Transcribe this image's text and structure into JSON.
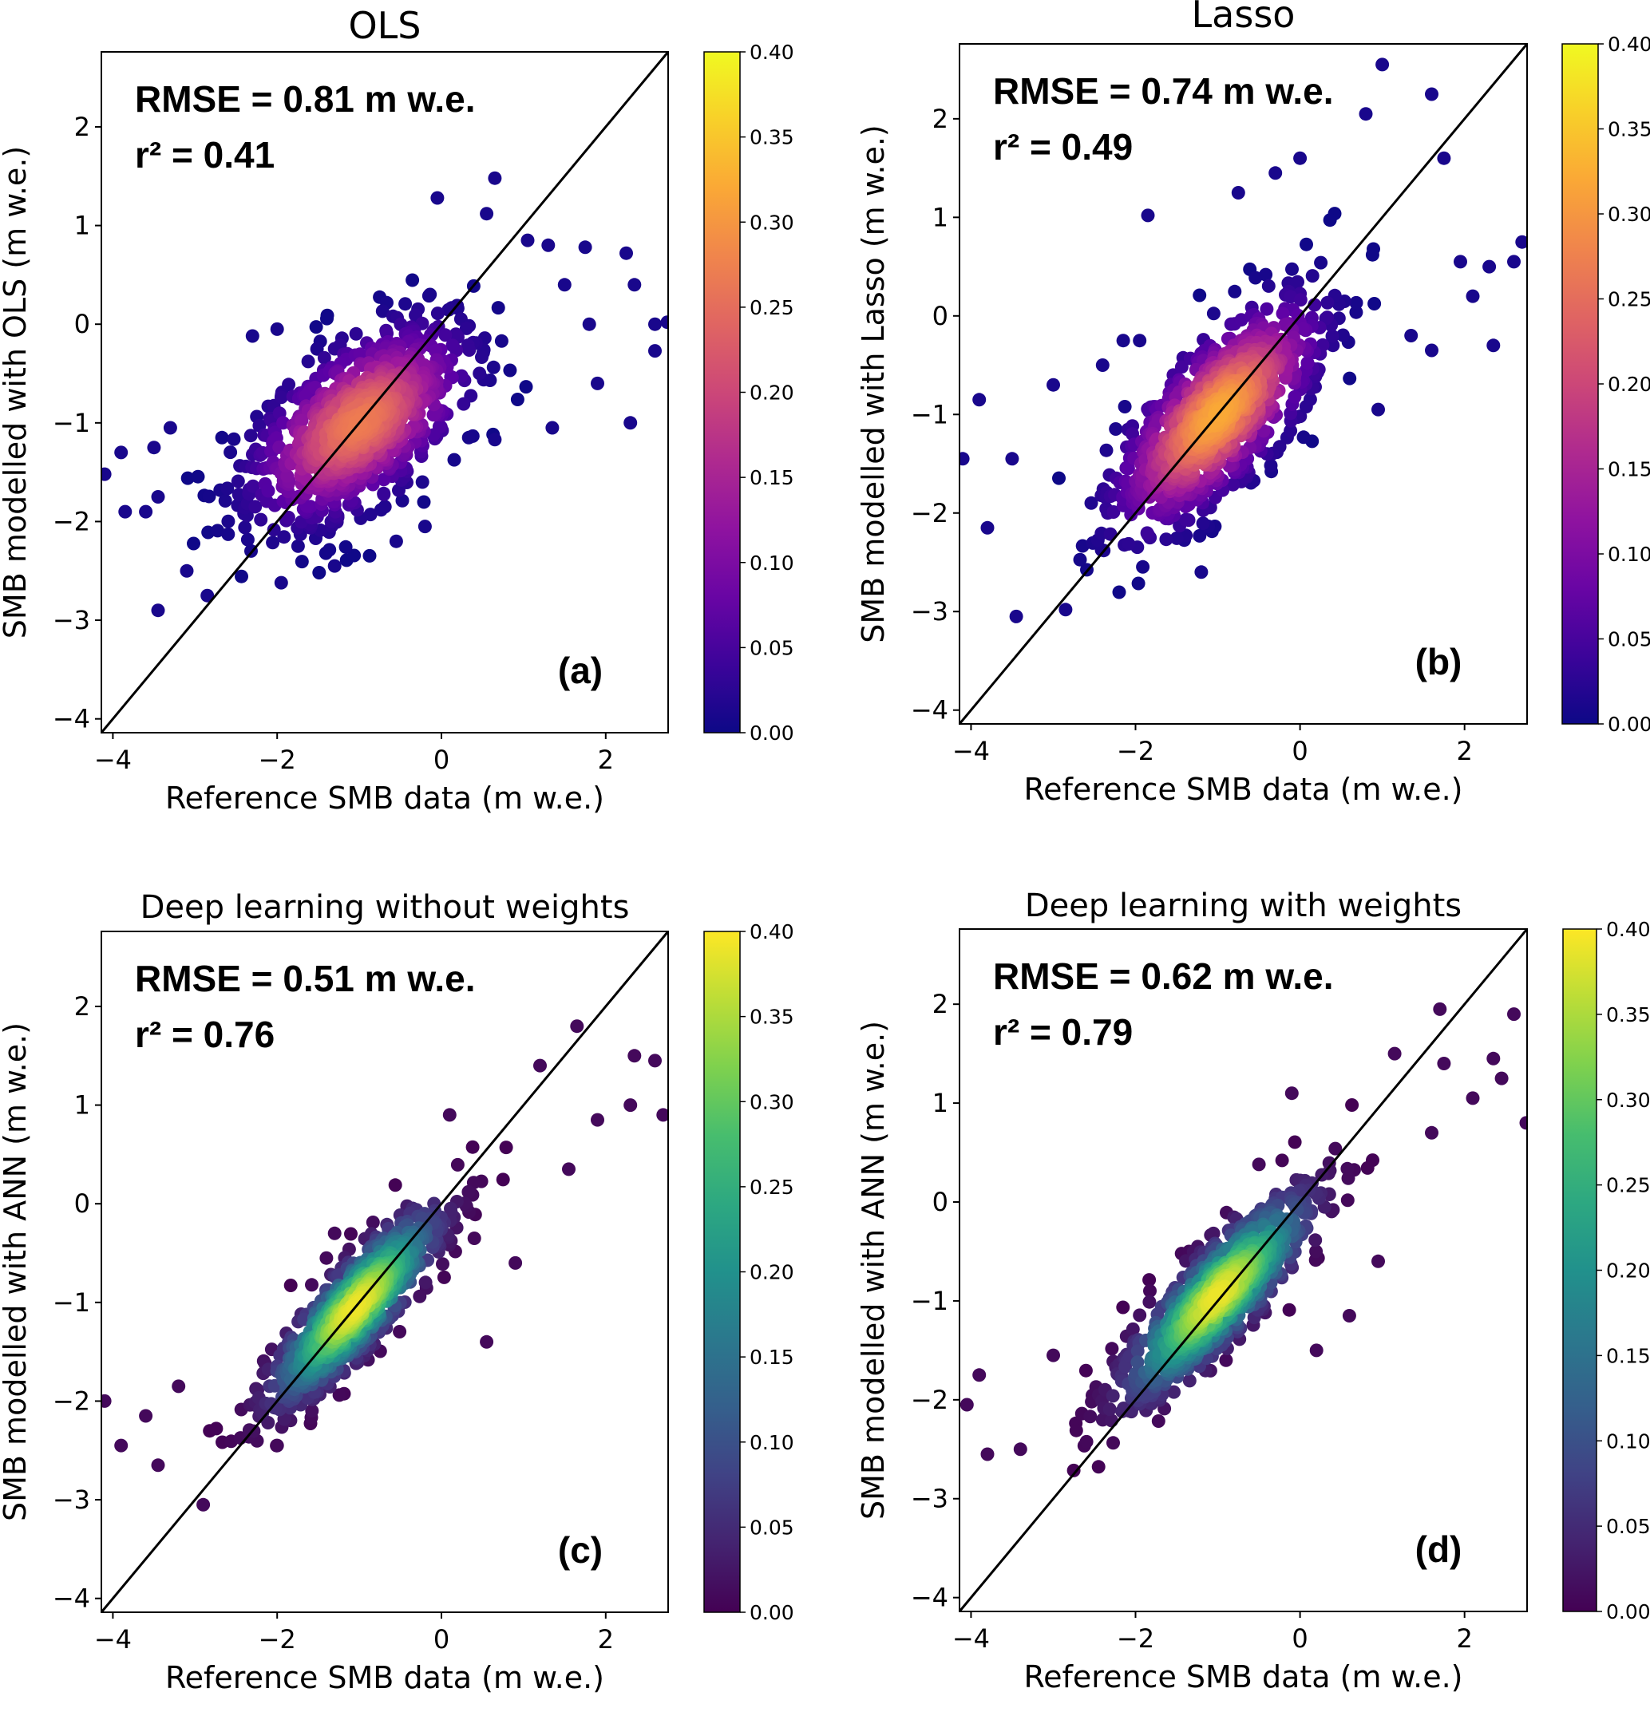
{
  "chart_data": [
    {
      "type": "scatter",
      "panel": "(a)",
      "title": "OLS",
      "xlabel": "Reference SMB data (m w.e.)",
      "ylabel": "SMB modelled with OLS (m w.e.)",
      "rmse_text": "RMSE = 0.81 m w.e.",
      "r2_text": "r² = 0.41",
      "xlim": [
        -4.14,
        2.76
      ],
      "ylim": [
        -4.14,
        2.76
      ],
      "xticks": [
        -4,
        -2,
        0,
        2
      ],
      "xtick_labels": [
        "−4",
        "−2",
        "0",
        "2"
      ],
      "yticks": [
        -4,
        -3,
        -2,
        -1,
        0,
        1,
        2
      ],
      "ytick_labels": [
        "−4",
        "−3",
        "−2",
        "−1",
        "0",
        "1",
        "2"
      ],
      "colormap": "plasma",
      "colorbar": {
        "range": [
          0,
          0.4
        ],
        "tick_labels": [
          "0.00",
          "0.05",
          "0.10",
          "0.15",
          "0.20",
          "0.25",
          "0.30",
          "0.35",
          "0.40"
        ]
      },
      "one_to_one_line": true,
      "density_cloud": {
        "center": [
          -1.0,
          -1.0
        ],
        "slope": 0.62,
        "sd_major": 0.75,
        "sd_minor": 0.38,
        "n": 900,
        "peak_density": 0.27
      },
      "outliers": [
        [
          0.65,
          1.48
        ],
        [
          -0.05,
          1.28
        ],
        [
          0.55,
          1.12
        ],
        [
          1.3,
          0.8
        ],
        [
          2.25,
          0.72
        ],
        [
          2.35,
          0.4
        ],
        [
          2.6,
          0.0
        ],
        [
          2.75,
          0.02
        ],
        [
          2.6,
          -0.27
        ],
        [
          -2.3,
          -0.12
        ],
        [
          -2.0,
          -0.05
        ],
        [
          -3.45,
          -2.9
        ],
        [
          -2.85,
          -2.75
        ],
        [
          -3.1,
          -2.5
        ],
        [
          -4.1,
          -1.52
        ],
        [
          -3.9,
          -1.3
        ],
        [
          -3.85,
          -1.9
        ],
        [
          -3.6,
          -1.9
        ],
        [
          -3.5,
          -1.25
        ],
        [
          2.3,
          -1.0
        ],
        [
          1.35,
          -1.05
        ],
        [
          1.9,
          -0.6
        ],
        [
          -0.2,
          -2.05
        ],
        [
          -0.55,
          -2.2
        ],
        [
          -1.3,
          -2.45
        ],
        [
          -1.95,
          -2.62
        ],
        [
          0.65,
          -1.17
        ],
        [
          1.5,
          0.4
        ],
        [
          1.75,
          0.78
        ],
        [
          1.8,
          -0.0
        ],
        [
          1.05,
          0.85
        ],
        [
          -3.3,
          -1.05
        ],
        [
          -3.45,
          -1.75
        ]
      ]
    },
    {
      "type": "scatter",
      "panel": "(b)",
      "title": "Lasso",
      "xlabel": "Reference SMB data (m w.e.)",
      "ylabel": "SMB modelled with Lasso (m w.e.)",
      "rmse_text": "RMSE = 0.74 m w.e.",
      "r2_text": "r² = 0.49",
      "xlim": [
        -4.14,
        2.76
      ],
      "ylim": [
        -4.14,
        2.76
      ],
      "xticks": [
        -4,
        -2,
        0,
        2
      ],
      "xtick_labels": [
        "−4",
        "−2",
        "0",
        "2"
      ],
      "yticks": [
        -4,
        -3,
        -2,
        -1,
        0,
        1,
        2
      ],
      "ytick_labels": [
        "−4",
        "−3",
        "−2",
        "−1",
        "0",
        "1",
        "2"
      ],
      "colormap": "plasma",
      "colorbar": {
        "range": [
          0,
          0.4
        ],
        "tick_labels": [
          "0.00",
          "0.05",
          "0.10",
          "0.15",
          "0.20",
          "0.25",
          "0.30",
          "0.35",
          "0.40"
        ]
      },
      "one_to_one_line": true,
      "density_cloud": {
        "center": [
          -1.0,
          -1.0
        ],
        "slope": 0.9,
        "sd_major": 0.8,
        "sd_minor": 0.33,
        "n": 900,
        "peak_density": 0.32
      },
      "outliers": [
        [
          1.0,
          2.55
        ],
        [
          1.6,
          2.25
        ],
        [
          0.8,
          2.05
        ],
        [
          -1.85,
          1.02
        ],
        [
          -0.3,
          1.45
        ],
        [
          2.7,
          0.75
        ],
        [
          2.6,
          0.55
        ],
        [
          2.3,
          0.5
        ],
        [
          2.1,
          0.2
        ],
        [
          2.35,
          -0.3
        ],
        [
          -3.45,
          -3.05
        ],
        [
          -2.85,
          -2.98
        ],
        [
          -4.1,
          -1.45
        ],
        [
          -3.9,
          -0.85
        ],
        [
          -1.2,
          -2.6
        ],
        [
          -2.15,
          -0.25
        ],
        [
          -1.95,
          -0.25
        ],
        [
          -2.4,
          -0.5
        ],
        [
          1.75,
          1.6
        ],
        [
          0.0,
          1.6
        ],
        [
          -0.75,
          1.25
        ],
        [
          -3.0,
          -0.7
        ],
        [
          -3.8,
          -2.15
        ],
        [
          -3.5,
          -1.45
        ],
        [
          1.6,
          -0.35
        ],
        [
          1.35,
          -0.2
        ],
        [
          1.95,
          0.55
        ],
        [
          0.95,
          -0.95
        ]
      ]
    },
    {
      "type": "scatter",
      "panel": "(c)",
      "title": "Deep learning without weights",
      "xlabel": "Reference SMB data (m w.e.)",
      "ylabel": "SMB modelled with ANN (m w.e.)",
      "rmse_text": "RMSE = 0.51 m w.e.",
      "r2_text": "r² = 0.76",
      "xlim": [
        -4.14,
        2.76
      ],
      "ylim": [
        -4.14,
        2.76
      ],
      "xticks": [
        -4,
        -2,
        0,
        2
      ],
      "xtick_labels": [
        "−4",
        "−2",
        "0",
        "2"
      ],
      "yticks": [
        -4,
        -3,
        -2,
        -1,
        0,
        1,
        2
      ],
      "ytick_labels": [
        "−4",
        "−3",
        "−2",
        "−1",
        "0",
        "1",
        "2"
      ],
      "colormap": "viridis",
      "colorbar": {
        "range": [
          0,
          0.4
        ],
        "tick_labels": [
          "0.00",
          "0.05",
          "0.10",
          "0.15",
          "0.20",
          "0.25",
          "0.30",
          "0.35",
          "0.40"
        ]
      },
      "one_to_one_line": true,
      "density_cloud": {
        "center": [
          -1.05,
          -1.05
        ],
        "slope": 0.95,
        "sd_major": 0.72,
        "sd_minor": 0.2,
        "n": 900,
        "peak_density": 0.39
      },
      "outliers": [
        [
          -2.9,
          -3.05
        ],
        [
          -4.1,
          -2.0
        ],
        [
          -3.9,
          -2.45
        ],
        [
          -3.45,
          -2.65
        ],
        [
          2.6,
          1.45
        ],
        [
          2.7,
          0.9
        ],
        [
          1.65,
          1.8
        ],
        [
          2.35,
          1.5
        ],
        [
          0.9,
          -0.6
        ],
        [
          0.4,
          -0.35
        ],
        [
          2.3,
          1.0
        ],
        [
          1.9,
          0.85
        ],
        [
          1.2,
          1.4
        ],
        [
          -1.4,
          -0.55
        ],
        [
          -1.3,
          -0.3
        ],
        [
          0.55,
          -1.4
        ],
        [
          -2.0,
          -2.45
        ],
        [
          -3.2,
          -1.85
        ],
        [
          -3.6,
          -2.15
        ],
        [
          1.55,
          0.35
        ],
        [
          0.1,
          0.9
        ]
      ]
    },
    {
      "type": "scatter",
      "panel": "(d)",
      "title": "Deep learning with weights",
      "xlabel": "Reference SMB data (m w.e.)",
      "ylabel": "SMB modelled with ANN (m w.e.)",
      "rmse_text": "RMSE = 0.62 m w.e.",
      "r2_text": "r² = 0.79",
      "xlim": [
        -4.14,
        2.76
      ],
      "ylim": [
        -4.14,
        2.76
      ],
      "xticks": [
        -4,
        -2,
        0,
        2
      ],
      "xtick_labels": [
        "−4",
        "−2",
        "0",
        "2"
      ],
      "yticks": [
        -4,
        -3,
        -2,
        -1,
        0,
        1,
        2
      ],
      "ytick_labels": [
        "−4",
        "−3",
        "−2",
        "−1",
        "0",
        "1",
        "2"
      ],
      "colormap": "viridis",
      "colorbar": {
        "range": [
          0,
          0.4
        ],
        "tick_labels": [
          "0.00",
          "0.05",
          "0.10",
          "0.15",
          "0.20",
          "0.25",
          "0.30",
          "0.35",
          "0.40"
        ]
      },
      "one_to_one_line": true,
      "density_cloud": {
        "center": [
          -1.0,
          -0.95
        ],
        "slope": 0.9,
        "sd_major": 0.78,
        "sd_minor": 0.22,
        "n": 900,
        "peak_density": 0.39
      },
      "outliers": [
        [
          -3.8,
          -2.55
        ],
        [
          -4.05,
          -2.05
        ],
        [
          -3.9,
          -1.75
        ],
        [
          2.6,
          1.9
        ],
        [
          1.7,
          1.95
        ],
        [
          2.75,
          0.8
        ],
        [
          1.15,
          1.5
        ],
        [
          0.95,
          -0.6
        ],
        [
          0.6,
          -1.15
        ],
        [
          -1.35,
          -0.5
        ],
        [
          1.75,
          1.4
        ],
        [
          2.35,
          1.45
        ],
        [
          2.45,
          1.25
        ],
        [
          2.1,
          1.05
        ],
        [
          -0.1,
          1.1
        ],
        [
          -0.5,
          0.38
        ],
        [
          0.2,
          -1.5
        ],
        [
          -0.9,
          -1.6
        ],
        [
          -3.4,
          -2.5
        ],
        [
          -3.0,
          -1.55
        ],
        [
          1.6,
          0.7
        ]
      ]
    }
  ]
}
